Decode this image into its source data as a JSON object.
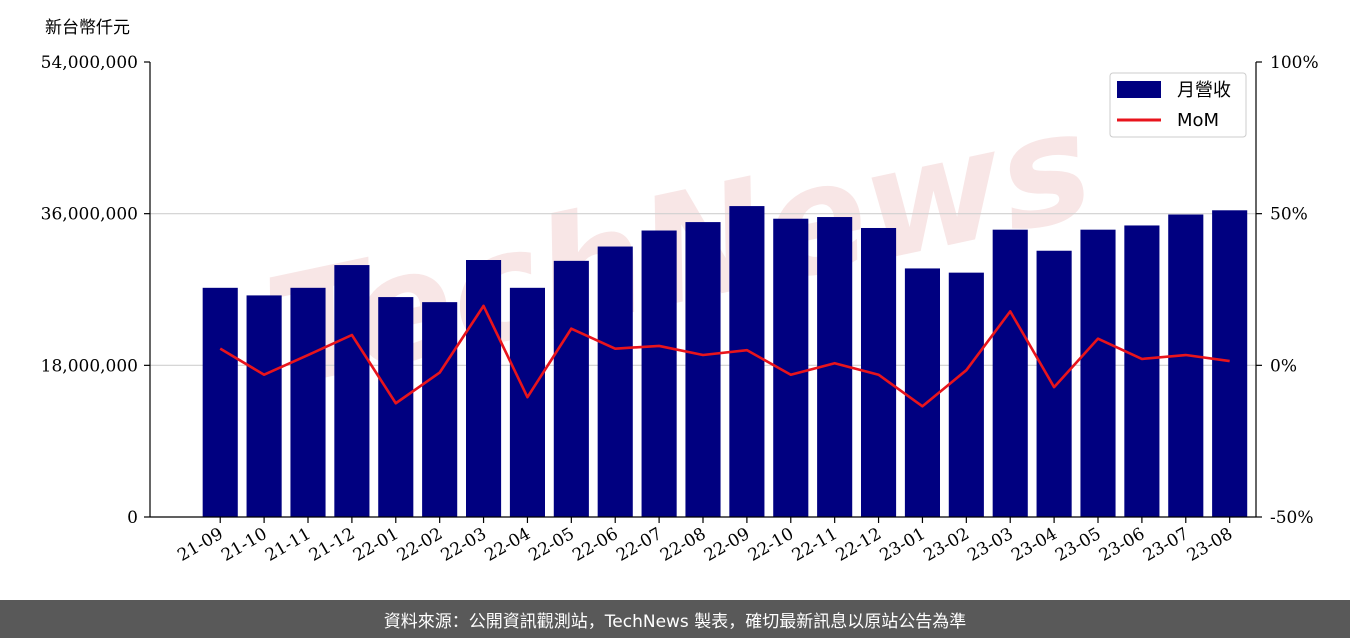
{
  "chart_data": {
    "type": "bar",
    "unit_label": "新台幣仟元",
    "categories": [
      "21-09",
      "21-10",
      "21-11",
      "21-12",
      "22-01",
      "22-02",
      "22-03",
      "22-04",
      "22-05",
      "22-06",
      "22-07",
      "22-08",
      "22-09",
      "22-10",
      "22-11",
      "22-12",
      "23-01",
      "23-02",
      "23-03",
      "23-04",
      "23-05",
      "23-06",
      "23-07",
      "23-08"
    ],
    "series": [
      {
        "name": "月營收",
        "axis": "left",
        "type": "bar",
        "color": "#000080",
        "values": [
          27200000,
          26300000,
          27200000,
          29900000,
          26100000,
          25500000,
          30500000,
          27200000,
          30400000,
          32100000,
          34000000,
          35000000,
          36900000,
          35400000,
          35600000,
          34300000,
          29500000,
          29000000,
          34100000,
          31600000,
          34100000,
          34600000,
          35900000,
          36400000
        ]
      },
      {
        "name": "MoM",
        "axis": "right",
        "type": "line",
        "color": "#e8141c",
        "values": [
          5.5,
          -3.1,
          3.4,
          10.0,
          -12.5,
          -2.4,
          19.6,
          -10.5,
          12.1,
          5.5,
          6.4,
          3.4,
          5.0,
          -3.1,
          0.7,
          -3.1,
          -13.5,
          -1.6,
          17.8,
          -7.2,
          8.8,
          2.1,
          3.4,
          1.4
        ]
      }
    ],
    "y_left": {
      "lim": [
        0,
        54000000
      ],
      "ticks": [
        0,
        18000000,
        36000000,
        54000000
      ],
      "tick_labels": [
        "0",
        "18,000,000",
        "36,000,000",
        "54,000,000"
      ]
    },
    "y_right": {
      "lim": [
        -50,
        100
      ],
      "ticks": [
        -50,
        0,
        50,
        100
      ],
      "tick_labels": [
        "-50%",
        "0%",
        "50%",
        "100%"
      ]
    },
    "grid": "horizontal",
    "legend_position": "top-right",
    "watermark": "TechNews"
  },
  "footer": {
    "source_text": "資料來源：公開資訊觀測站，TechNews 製表，確切最新訊息以原站公告為準"
  }
}
